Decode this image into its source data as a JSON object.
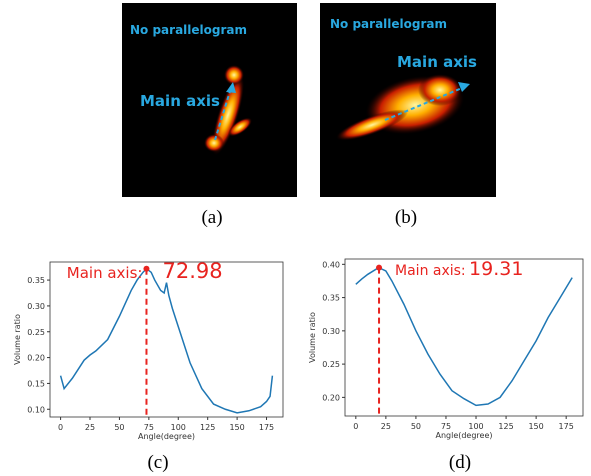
{
  "images": [
    {
      "label": "No parallelogram",
      "annotation": "Main axis",
      "caption": "(a)"
    },
    {
      "label": "No parallelogram",
      "annotation": "Main axis",
      "caption": "(b)"
    }
  ],
  "chart_data": [
    {
      "type": "line",
      "caption": "(c)",
      "xlabel": "Angle(degree)",
      "ylabel": "Volume ratio",
      "annotation": "Main axis:",
      "peak": {
        "x": 72.98,
        "y": 0.372
      },
      "xlim": [
        -9,
        189
      ],
      "ylim": [
        0.085,
        0.385
      ],
      "xticks": [
        0,
        25,
        50,
        75,
        100,
        125,
        150,
        175
      ],
      "yticks": [
        {
          "value": 0.1,
          "label": "0.10"
        },
        0.15,
        {
          "value": 0.2,
          "label": "0.20"
        },
        0.25,
        {
          "value": 0.3,
          "label": "0.30"
        },
        0.35
      ],
      "series": [
        {
          "color": "#1f77b4",
          "x": [
            0,
            3,
            10,
            20,
            25,
            30,
            40,
            50,
            60,
            65,
            70,
            73,
            77,
            80,
            85,
            88,
            90,
            92,
            95,
            100,
            110,
            120,
            130,
            140,
            150,
            160,
            170,
            175,
            178,
            180
          ],
          "values": [
            0.165,
            0.14,
            0.16,
            0.195,
            0.205,
            0.213,
            0.235,
            0.28,
            0.33,
            0.35,
            0.365,
            0.372,
            0.365,
            0.35,
            0.33,
            0.325,
            0.345,
            0.32,
            0.295,
            0.26,
            0.19,
            0.14,
            0.11,
            0.1,
            0.093,
            0.097,
            0.105,
            0.115,
            0.125,
            0.165
          ]
        }
      ]
    },
    {
      "type": "line",
      "caption": "(d)",
      "xlabel": "Angle(degree)",
      "ylabel": "Volume ratio",
      "annotation": "Main axis:",
      "peak": {
        "x": 19.31,
        "y": 0.395
      },
      "xlim": [
        -9,
        189
      ],
      "ylim": [
        0.172,
        0.408
      ],
      "xticks": [
        0,
        25,
        50,
        75,
        100,
        125,
        150,
        175
      ],
      "yticks": [
        {
          "value": 0.2,
          "label": "0.20"
        },
        0.25,
        {
          "value": 0.3,
          "label": "0.30"
        },
        0.35,
        {
          "value": 0.4,
          "label": "0.40"
        }
      ],
      "series": [
        {
          "color": "#1f77b4",
          "x": [
            0,
            5,
            10,
            19,
            25,
            30,
            40,
            50,
            60,
            70,
            80,
            90,
            100,
            110,
            120,
            130,
            140,
            150,
            160,
            170,
            180
          ],
          "values": [
            0.37,
            0.378,
            0.385,
            0.395,
            0.39,
            0.375,
            0.34,
            0.3,
            0.265,
            0.235,
            0.21,
            0.198,
            0.188,
            0.19,
            0.2,
            0.225,
            0.255,
            0.285,
            0.32,
            0.35,
            0.38
          ]
        }
      ]
    }
  ]
}
